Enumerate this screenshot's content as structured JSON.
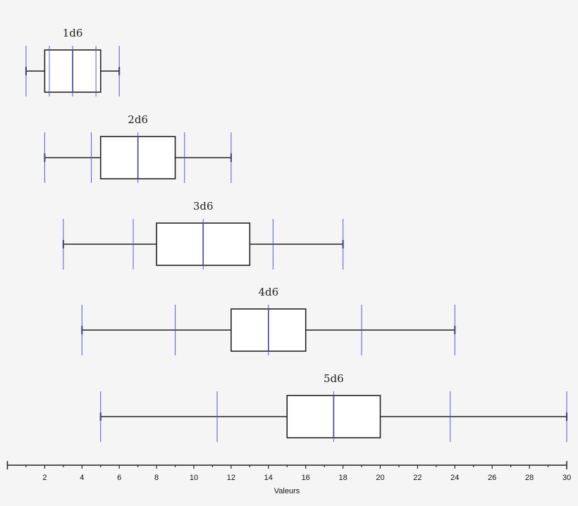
{
  "chart_data": {
    "type": "boxplot",
    "title": "",
    "xlabel": "Valeurs",
    "ylabel": "",
    "xlim": [
      0,
      30
    ],
    "x_ticks": [
      2,
      4,
      6,
      8,
      10,
      12,
      14,
      16,
      18,
      20,
      22,
      24,
      26,
      28,
      30
    ],
    "minor_tick_step": 1,
    "grid": false,
    "series": [
      {
        "name": "1d6",
        "min": 1,
        "q1": 2,
        "median": 3.5,
        "q3": 5,
        "max": 6,
        "reference_lines": [
          1,
          2.25,
          3.5,
          4.75,
          6
        ]
      },
      {
        "name": "2d6",
        "min": 2,
        "q1": 5,
        "median": 7,
        "q3": 9,
        "max": 12,
        "reference_lines": [
          2,
          4.5,
          7,
          9.5,
          12
        ]
      },
      {
        "name": "3d6",
        "min": 3,
        "q1": 8,
        "median": 10.5,
        "q3": 13,
        "max": 18,
        "reference_lines": [
          3,
          6.75,
          10.5,
          14.25,
          18
        ]
      },
      {
        "name": "4d6",
        "min": 4,
        "q1": 12,
        "median": 14,
        "q3": 16,
        "max": 24,
        "reference_lines": [
          4,
          9,
          14,
          19,
          24
        ]
      },
      {
        "name": "5d6",
        "min": 5,
        "q1": 15,
        "median": 17.5,
        "q3": 20,
        "max": 30,
        "reference_lines": [
          5,
          11.25,
          17.5,
          23.75,
          30
        ]
      }
    ]
  },
  "colors": {
    "background": "#f5f5f5",
    "box_fill": "#ffffff",
    "box_stroke": "#222222",
    "reference_line": "#5555dd"
  }
}
